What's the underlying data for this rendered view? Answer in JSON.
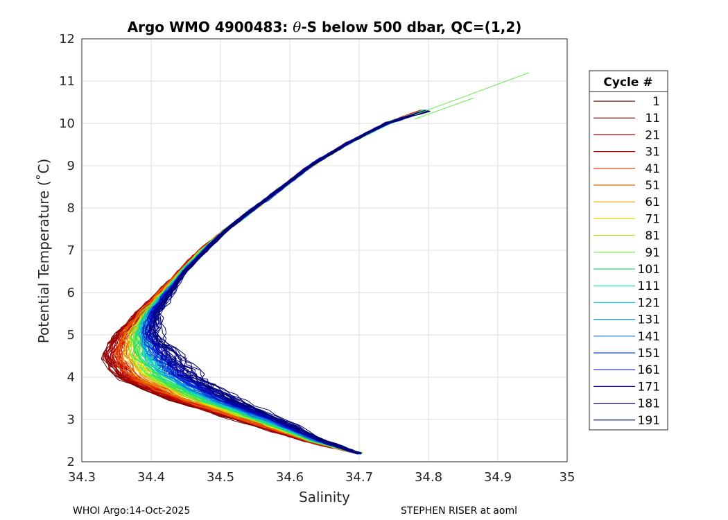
{
  "chart_data": {
    "type": "line",
    "title_prefix": "Argo WMO 4900483: ",
    "title_theta": "θ",
    "title_suffix": "-S below 500 dbar,  QC=(1,2)",
    "xlabel": "Salinity",
    "ylabel": "Potential Temperature (˚C)",
    "xlim": [
      34.3,
      35
    ],
    "ylim": [
      2,
      12
    ],
    "xticks": [
      "34.3",
      "34.4",
      "34.5",
      "34.6",
      "34.7",
      "34.8",
      "34.9",
      "35"
    ],
    "yticks": [
      "2",
      "3",
      "4",
      "5",
      "6",
      "7",
      "8",
      "9",
      "10",
      "11",
      "12"
    ],
    "grid": true,
    "legend": {
      "title": "Cycle #",
      "placement": "right-outside",
      "entries": [
        {
          "label": "1",
          "color": "#6a0000"
        },
        {
          "label": "11",
          "color": "#8a0000"
        },
        {
          "label": "21",
          "color": "#b00000"
        },
        {
          "label": "31",
          "color": "#d00000"
        },
        {
          "label": "41",
          "color": "#e02800"
        },
        {
          "label": "51",
          "color": "#e06800"
        },
        {
          "label": "61",
          "color": "#f0a800"
        },
        {
          "label": "71",
          "color": "#f0e000"
        },
        {
          "label": "81",
          "color": "#b8f028"
        },
        {
          "label": "91",
          "color": "#60f040"
        },
        {
          "label": "101",
          "color": "#20e070"
        },
        {
          "label": "111",
          "color": "#10d8a8"
        },
        {
          "label": "121",
          "color": "#10c8d8"
        },
        {
          "label": "131",
          "color": "#10a0e0"
        },
        {
          "label": "141",
          "color": "#1070e0"
        },
        {
          "label": "151",
          "color": "#1040d8"
        },
        {
          "label": "161",
          "color": "#1018d0"
        },
        {
          "label": "171",
          "color": "#0808b0"
        },
        {
          "label": "181",
          "color": "#000090"
        },
        {
          "label": "191",
          "color": "#000070"
        }
      ]
    },
    "series_shape": {
      "description": "theta-S curves, one per cycle group; salinity at each potential temperature",
      "theta": [
        2.2,
        2.5,
        3.0,
        3.5,
        4.0,
        4.5,
        5.0,
        5.5,
        6.0,
        6.5,
        7.0,
        7.5,
        8.0,
        8.5,
        9.0,
        9.5,
        10.0,
        10.3
      ],
      "salinity_early": [
        34.7,
        34.62,
        34.52,
        34.42,
        34.35,
        34.33,
        34.35,
        34.38,
        34.41,
        34.44,
        34.47,
        34.51,
        34.55,
        34.59,
        34.63,
        34.68,
        34.74,
        34.79
      ],
      "salinity_late": [
        34.7,
        34.65,
        34.59,
        34.52,
        34.47,
        34.44,
        34.41,
        34.41,
        34.43,
        34.45,
        34.48,
        34.51,
        34.55,
        34.59,
        34.63,
        34.68,
        34.74,
        34.8
      ]
    },
    "extra_segments": [
      {
        "color": "#60f040",
        "from": [
          34.78,
          10.2
        ],
        "to": [
          34.945,
          11.2
        ]
      },
      {
        "color": "#60f040",
        "from": [
          34.78,
          10.1
        ],
        "to": [
          34.865,
          10.6
        ]
      }
    ]
  },
  "footer": {
    "left": "WHOI Argo:14-Oct-2025",
    "right": "STEPHEN RISER at aoml"
  }
}
